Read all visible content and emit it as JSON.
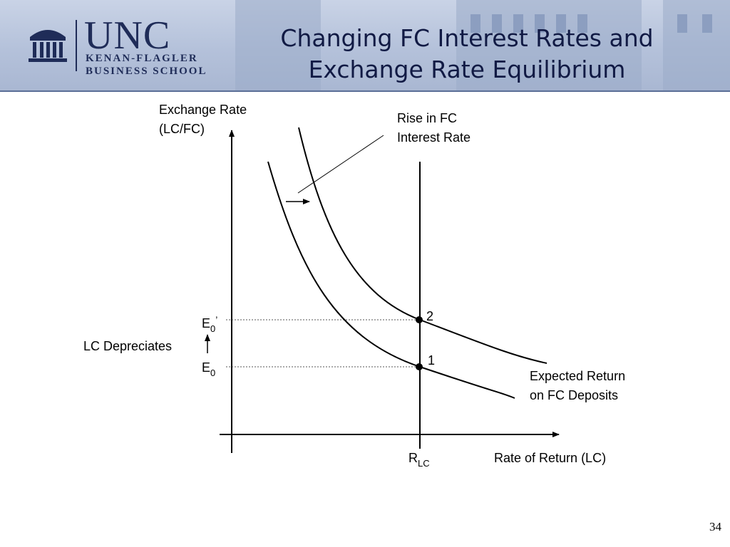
{
  "header": {
    "logo": {
      "wordmark": "UNC",
      "line1": "KENAN-FLAGLER",
      "line2": "BUSINESS SCHOOL"
    },
    "title_line1": "Changing FC Interest Rates and",
    "title_line2": "Exchange Rate Equilibrium"
  },
  "diagram": {
    "y_axis_label_line1": "Exchange Rate",
    "y_axis_label_line2": "(LC/FC)",
    "x_axis_label": "Rate of Return (LC)",
    "rlc_label": "R",
    "rlc_sub": "LC",
    "shift_label_line1": "Rise in FC",
    "shift_label_line2": "Interest Rate",
    "curve_label_line1": "Expected Return",
    "curve_label_line2": "on FC Deposits",
    "e0_prime_label": "E",
    "e0_prime_sub": "0",
    "e0_prime_mark": "’",
    "e0_label": "E",
    "e0_sub": "0",
    "depreciates_label": "LC Depreciates",
    "point_2_label": "2",
    "point_1_label": "1"
  },
  "footer": {
    "page_number": "34"
  }
}
